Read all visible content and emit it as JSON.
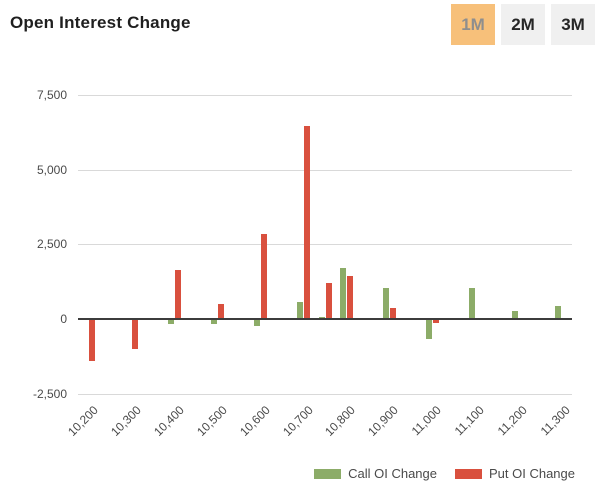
{
  "header": {
    "title": "Open Interest Change",
    "range_buttons": [
      {
        "label": "1M",
        "active": true
      },
      {
        "label": "2M",
        "active": false
      },
      {
        "label": "3M",
        "active": false
      }
    ]
  },
  "legend": [
    {
      "label": "Call OI Change",
      "series": "call"
    },
    {
      "label": "Put OI Change",
      "series": "put"
    }
  ],
  "colors": {
    "call_green": "#8CAC68",
    "put_red": "#D9503E",
    "active_button_bg": "#F7C07A",
    "active_button_text": "#8E8E8E",
    "button_bg": "#F0F0F0",
    "button_text": "#262626",
    "gridline": "#D9D9D9",
    "zero_line": "#3C3C3C",
    "axis_text": "#4A4A4A"
  },
  "chart_data": {
    "type": "bar",
    "title": "Open Interest Change",
    "xlabel": "",
    "ylabel": "",
    "grid": true,
    "legend_position": "bottom-right",
    "y_tick_values": [
      7500,
      5000,
      2500,
      0,
      -2500
    ],
    "y_tick_labels": [
      "7,500",
      "5,000",
      "2,500",
      "0",
      "-2,500"
    ],
    "ylim": [
      -2900,
      8150
    ],
    "categories": [
      10200,
      10250,
      10300,
      10350,
      10400,
      10450,
      10500,
      10550,
      10600,
      10650,
      10700,
      10750,
      10800,
      10850,
      10900,
      10950,
      11000,
      11050,
      11100,
      11150,
      11200,
      11250,
      11300
    ],
    "x_tick_labels": [
      "10,200",
      "10,300",
      "10,400",
      "10,500",
      "10,600",
      "10,700",
      "10,800",
      "10,900",
      "11,000",
      "11,100",
      "11,200",
      "11,300"
    ],
    "series": [
      {
        "name": "Call OI Change",
        "color": "#8CAC68",
        "values": [
          0,
          0,
          0,
          0,
          -160,
          0,
          -170,
          0,
          -250,
          0,
          560,
          70,
          1700,
          0,
          1040,
          0,
          -680,
          0,
          1040,
          0,
          280,
          0,
          430
        ]
      },
      {
        "name": "Put OI Change",
        "color": "#D9503E",
        "values": [
          -1400,
          0,
          -1000,
          0,
          1640,
          0,
          510,
          0,
          2840,
          0,
          6470,
          1200,
          1450,
          0,
          370,
          0,
          -150,
          0,
          0,
          0,
          -50,
          0,
          0
        ]
      }
    ]
  }
}
